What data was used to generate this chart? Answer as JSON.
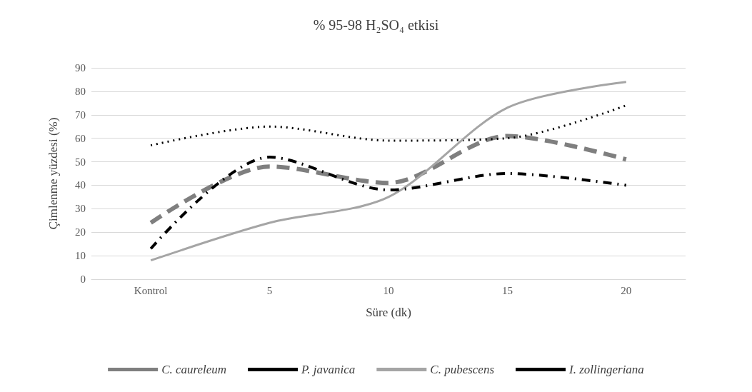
{
  "chart_data": {
    "type": "line",
    "title": "% 95-98 H₂SO₄ etkisi",
    "xlabel": "Süre (dk)",
    "ylabel": "Çimlenme yüzdesi (%)",
    "categories": [
      "Kontrol",
      "5",
      "10",
      "15",
      "20"
    ],
    "ylim": [
      0,
      90
    ],
    "yticks": [
      0,
      10,
      20,
      30,
      40,
      50,
      60,
      70,
      80,
      90
    ],
    "grid": "y",
    "legend": "bottom",
    "marker": "none",
    "series": [
      {
        "name": "C. caureleum",
        "color": "#7f7f7f",
        "line_style": "dashed",
        "values": [
          24,
          48,
          41,
          61,
          51
        ]
      },
      {
        "name": "P. javanica",
        "color": "#000000",
        "line_style": "dotted",
        "values": [
          57,
          65,
          59,
          60,
          74
        ]
      },
      {
        "name": "C. pubescens",
        "color": "#a5a5a5",
        "line_style": "solid",
        "values": [
          8,
          24,
          35,
          73,
          84
        ]
      },
      {
        "name": "I. zollingeriana",
        "color": "#000000",
        "line_style": "dashed",
        "values": [
          13,
          52,
          38,
          45,
          40
        ]
      }
    ]
  }
}
